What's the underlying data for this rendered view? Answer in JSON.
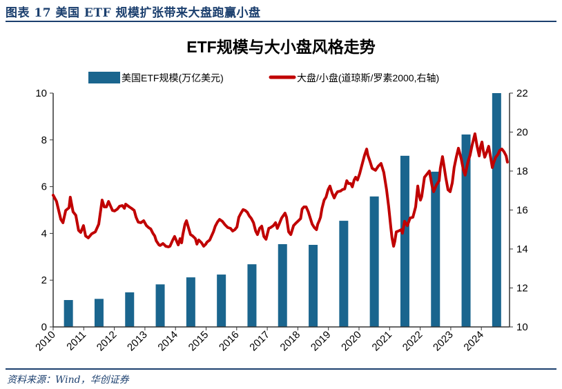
{
  "header": {
    "figure_title": "图表 17    美国 ETF 规模扩张带来大盘跑赢小盘"
  },
  "footer": {
    "source": "资料来源：Wind，华创证券"
  },
  "colors": {
    "bar": "#1a658e",
    "line": "#c00000",
    "accent": "#1b3f6e"
  },
  "chart_data": {
    "type": "bar+line",
    "title": "ETF规模与大小盘风格走势",
    "legend_position": "top",
    "legend": [
      "美国ETF规模(万亿美元)",
      "大盘/小盘(道琼斯/罗素2000,右轴)"
    ],
    "xlabel": "",
    "x_tick_labels": [
      "2010",
      "2011",
      "2012",
      "2013",
      "2014",
      "2015",
      "2016",
      "2017",
      "2018",
      "2019",
      "2020",
      "2021",
      "2022",
      "2023",
      "2024"
    ],
    "xlim": [
      2010,
      2024.9
    ],
    "y_left": {
      "ylim": [
        0,
        10
      ],
      "ticks": [
        "0",
        "2",
        "4",
        "6",
        "8",
        "10"
      ]
    },
    "y_right": {
      "ylim": [
        10,
        22
      ],
      "ticks": [
        "10",
        "12",
        "14",
        "16",
        "18",
        "20",
        "22"
      ]
    },
    "grid": false,
    "series": [
      {
        "name": "美国ETF规模(万亿美元)",
        "type": "bar",
        "axis": "left",
        "categories": [
          "2010",
          "2011",
          "2012",
          "2013",
          "2014",
          "2015",
          "2016",
          "2017",
          "2018",
          "2019",
          "2020",
          "2021",
          "2022",
          "2023",
          "2024"
        ],
        "values": [
          1.15,
          1.2,
          1.48,
          1.82,
          2.12,
          2.24,
          2.68,
          3.54,
          3.51,
          4.54,
          5.58,
          7.32,
          6.64,
          8.23,
          10.0
        ]
      },
      {
        "name": "大盘/小盘(道琼斯/罗素2000,右轴)",
        "type": "line",
        "axis": "right",
        "points": [
          [
            2010.0,
            16.76
          ],
          [
            2010.11,
            16.44
          ],
          [
            2010.25,
            15.52
          ],
          [
            2010.32,
            15.35
          ],
          [
            2010.41,
            15.98
          ],
          [
            2010.52,
            16.12
          ],
          [
            2010.56,
            16.66
          ],
          [
            2010.65,
            15.91
          ],
          [
            2010.74,
            15.73
          ],
          [
            2010.83,
            14.96
          ],
          [
            2010.9,
            14.85
          ],
          [
            2010.99,
            15.2
          ],
          [
            2011.06,
            14.67
          ],
          [
            2011.15,
            14.57
          ],
          [
            2011.26,
            14.78
          ],
          [
            2011.38,
            14.88
          ],
          [
            2011.49,
            15.27
          ],
          [
            2011.6,
            16.51
          ],
          [
            2011.67,
            16.16
          ],
          [
            2011.74,
            16.16
          ],
          [
            2011.81,
            16.44
          ],
          [
            2011.87,
            16.23
          ],
          [
            2011.94,
            15.98
          ],
          [
            2012.01,
            15.95
          ],
          [
            2012.1,
            16.05
          ],
          [
            2012.17,
            16.19
          ],
          [
            2012.26,
            16.23
          ],
          [
            2012.33,
            16.09
          ],
          [
            2012.37,
            16.3
          ],
          [
            2012.49,
            16.16
          ],
          [
            2012.56,
            16.09
          ],
          [
            2012.65,
            15.98
          ],
          [
            2012.71,
            15.63
          ],
          [
            2012.78,
            15.38
          ],
          [
            2012.87,
            15.35
          ],
          [
            2012.96,
            15.45
          ],
          [
            2013.05,
            15.2
          ],
          [
            2013.12,
            15.1
          ],
          [
            2013.19,
            15.03
          ],
          [
            2013.26,
            14.81
          ],
          [
            2013.32,
            14.67
          ],
          [
            2013.37,
            14.42
          ],
          [
            2013.46,
            14.21
          ],
          [
            2013.5,
            14.18
          ],
          [
            2013.59,
            14.28
          ],
          [
            2013.64,
            14.21
          ],
          [
            2013.68,
            14.14
          ],
          [
            2013.77,
            14.11
          ],
          [
            2013.82,
            14.14
          ],
          [
            2013.91,
            14.46
          ],
          [
            2013.97,
            14.64
          ],
          [
            2014.02,
            14.46
          ],
          [
            2014.09,
            14.21
          ],
          [
            2014.15,
            14.53
          ],
          [
            2014.2,
            14.32
          ],
          [
            2014.24,
            14.74
          ],
          [
            2014.31,
            15.27
          ],
          [
            2014.36,
            15.45
          ],
          [
            2014.45,
            14.96
          ],
          [
            2014.49,
            14.74
          ],
          [
            2014.56,
            14.67
          ],
          [
            2014.65,
            14.53
          ],
          [
            2014.7,
            14.25
          ],
          [
            2014.76,
            14.46
          ],
          [
            2014.85,
            14.32
          ],
          [
            2014.92,
            14.14
          ],
          [
            2014.99,
            14.25
          ],
          [
            2015.03,
            14.35
          ],
          [
            2015.12,
            14.46
          ],
          [
            2015.17,
            14.64
          ],
          [
            2015.24,
            14.88
          ],
          [
            2015.3,
            15.17
          ],
          [
            2015.37,
            15.38
          ],
          [
            2015.44,
            15.52
          ],
          [
            2015.53,
            15.42
          ],
          [
            2015.62,
            15.24
          ],
          [
            2015.71,
            15.1
          ],
          [
            2015.8,
            15.06
          ],
          [
            2015.87,
            14.92
          ],
          [
            2015.94,
            14.99
          ],
          [
            2016.01,
            15.13
          ],
          [
            2016.07,
            15.63
          ],
          [
            2016.14,
            15.84
          ],
          [
            2016.21,
            16.02
          ],
          [
            2016.28,
            15.98
          ],
          [
            2016.35,
            15.88
          ],
          [
            2016.41,
            15.7
          ],
          [
            2016.48,
            15.56
          ],
          [
            2016.55,
            15.35
          ],
          [
            2016.62,
            14.92
          ],
          [
            2016.68,
            14.74
          ],
          [
            2016.75,
            15.06
          ],
          [
            2016.82,
            15.17
          ],
          [
            2016.89,
            14.64
          ],
          [
            2016.96,
            14.5
          ],
          [
            2017.05,
            15.06
          ],
          [
            2017.11,
            15.1
          ],
          [
            2017.2,
            15.2
          ],
          [
            2017.27,
            15.35
          ],
          [
            2017.33,
            15.06
          ],
          [
            2017.38,
            15.24
          ],
          [
            2017.47,
            15.59
          ],
          [
            2017.58,
            15.84
          ],
          [
            2017.63,
            15.63
          ],
          [
            2017.7,
            14.88
          ],
          [
            2017.77,
            14.74
          ],
          [
            2017.86,
            15.2
          ],
          [
            2017.95,
            15.35
          ],
          [
            2018.02,
            15.45
          ],
          [
            2018.09,
            15.56
          ],
          [
            2018.14,
            16.05
          ],
          [
            2018.2,
            16.16
          ],
          [
            2018.27,
            16.16
          ],
          [
            2018.34,
            15.91
          ],
          [
            2018.41,
            15.56
          ],
          [
            2018.47,
            15.27
          ],
          [
            2018.54,
            15.1
          ],
          [
            2018.61,
            14.99
          ],
          [
            2018.65,
            15.27
          ],
          [
            2018.7,
            15.45
          ],
          [
            2018.74,
            15.63
          ],
          [
            2018.79,
            16.09
          ],
          [
            2018.86,
            16.51
          ],
          [
            2018.92,
            16.66
          ],
          [
            2018.99,
            17.05
          ],
          [
            2019.05,
            17.23
          ],
          [
            2019.12,
            16.87
          ],
          [
            2019.19,
            16.62
          ],
          [
            2019.24,
            16.8
          ],
          [
            2019.3,
            16.94
          ],
          [
            2019.39,
            16.97
          ],
          [
            2019.46,
            17.05
          ],
          [
            2019.53,
            17.08
          ],
          [
            2019.6,
            17.5
          ],
          [
            2019.66,
            17.36
          ],
          [
            2019.73,
            17.36
          ],
          [
            2019.78,
            17.19
          ],
          [
            2019.84,
            17.54
          ],
          [
            2019.89,
            17.68
          ],
          [
            2019.95,
            17.54
          ],
          [
            2020.02,
            17.86
          ],
          [
            2020.09,
            18.28
          ],
          [
            2020.18,
            18.81
          ],
          [
            2020.25,
            19.13
          ],
          [
            2020.29,
            18.81
          ],
          [
            2020.36,
            18.5
          ],
          [
            2020.43,
            18.14
          ],
          [
            2020.54,
            18.04
          ],
          [
            2020.63,
            18.25
          ],
          [
            2020.72,
            18.39
          ],
          [
            2020.81,
            17.93
          ],
          [
            2020.9,
            17.04
          ],
          [
            2020.97,
            16.16
          ],
          [
            2021.04,
            15.1
          ],
          [
            2021.08,
            14.57
          ],
          [
            2021.13,
            14.14
          ],
          [
            2021.17,
            14.39
          ],
          [
            2021.22,
            14.88
          ],
          [
            2021.29,
            14.92
          ],
          [
            2021.38,
            14.99
          ],
          [
            2021.42,
            14.81
          ],
          [
            2021.49,
            15.42
          ],
          [
            2021.58,
            15.2
          ],
          [
            2021.67,
            15.59
          ],
          [
            2021.76,
            15.63
          ],
          [
            2021.85,
            16.16
          ],
          [
            2021.92,
            17.23
          ],
          [
            2021.96,
            16.8
          ],
          [
            2022.01,
            16.51
          ],
          [
            2022.05,
            16.69
          ],
          [
            2022.14,
            17.68
          ],
          [
            2022.23,
            17.86
          ],
          [
            2022.3,
            18.0
          ],
          [
            2022.39,
            17.22
          ],
          [
            2022.44,
            16.94
          ],
          [
            2022.53,
            17.29
          ],
          [
            2022.62,
            17.5
          ],
          [
            2022.66,
            18.14
          ],
          [
            2022.73,
            18.74
          ],
          [
            2022.77,
            18.35
          ],
          [
            2022.84,
            17.64
          ],
          [
            2022.91,
            17.04
          ],
          [
            2022.98,
            16.94
          ],
          [
            2023.05,
            17.4
          ],
          [
            2023.11,
            18.18
          ],
          [
            2023.18,
            18.71
          ],
          [
            2023.25,
            19.17
          ],
          [
            2023.34,
            18.64
          ],
          [
            2023.41,
            18.07
          ],
          [
            2023.47,
            17.79
          ],
          [
            2023.56,
            18.46
          ],
          [
            2023.63,
            18.81
          ],
          [
            2023.7,
            19.34
          ],
          [
            2023.79,
            19.91
          ],
          [
            2023.86,
            19.27
          ],
          [
            2023.93,
            18.78
          ],
          [
            2023.97,
            19.24
          ],
          [
            2024.02,
            19.49
          ],
          [
            2024.06,
            19.06
          ],
          [
            2024.11,
            18.71
          ],
          [
            2024.18,
            18.99
          ],
          [
            2024.24,
            19.27
          ],
          [
            2024.31,
            18.64
          ],
          [
            2024.36,
            18.18
          ],
          [
            2024.4,
            18.42
          ],
          [
            2024.47,
            18.71
          ],
          [
            2024.54,
            18.85
          ],
          [
            2024.6,
            19.06
          ],
          [
            2024.67,
            19.13
          ],
          [
            2024.74,
            18.99
          ],
          [
            2024.81,
            18.78
          ],
          [
            2024.85,
            18.46
          ]
        ]
      }
    ]
  }
}
